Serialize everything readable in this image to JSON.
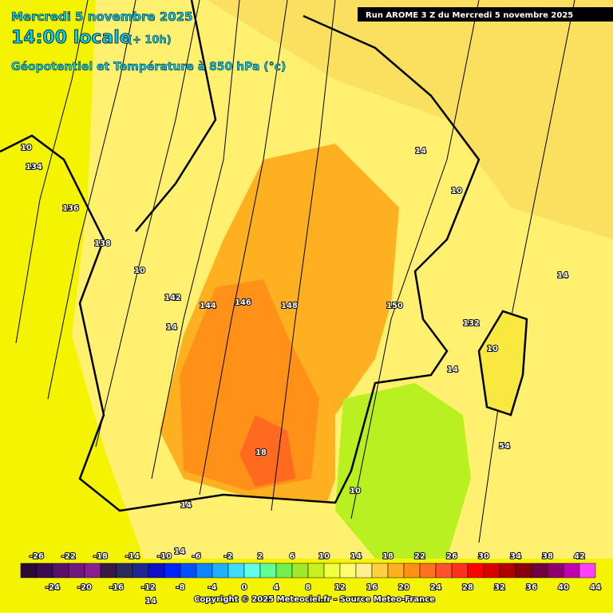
{
  "header": {
    "date": "Mercredi 5 novembre 2025",
    "time": "14:00 locale",
    "offset": "(+ 10h)",
    "product": "Géopotentiel et Température à 850 hPa (°c)",
    "run": "Run AROME 3 Z du Mercredi 5 novembre 2025"
  },
  "contour_labels": [
    "10",
    "134",
    "136",
    "138",
    "10",
    "142",
    "144",
    "146",
    "148",
    "150",
    "14",
    "14",
    "14",
    "10",
    "132",
    "14",
    "10",
    "54",
    "18",
    "10",
    "14",
    "14",
    "14"
  ],
  "legend": {
    "top_labels": [
      -26,
      -22,
      -18,
      -14,
      -10,
      -6,
      -2,
      2,
      6,
      10,
      14,
      18,
      22,
      26,
      30,
      34,
      38,
      42
    ],
    "bottom_labels": [
      -24,
      -20,
      -16,
      -12,
      -8,
      -4,
      0,
      4,
      8,
      12,
      16,
      20,
      24,
      28,
      32,
      36,
      40,
      44
    ]
  },
  "footer": {
    "copyright": "Copyright © 2025 Meteociel.fr - Source Meteo-France"
  }
}
